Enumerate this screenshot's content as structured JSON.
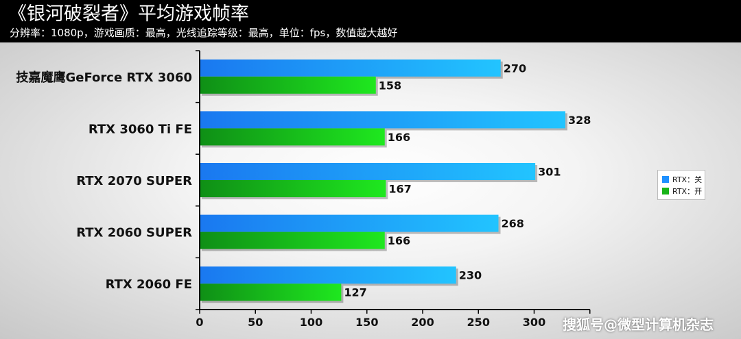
{
  "header": {
    "title": "《银河破裂者》平均游戏帧率",
    "subtitle": "分辨率：1080p，游戏画质：最高，光线追踪等级：最高，单位：fps，数值越大越好"
  },
  "chart_data": {
    "type": "bar",
    "orientation": "horizontal",
    "categories": [
      "技嘉魔鹰GeForce RTX 3060",
      "RTX 3060 Ti FE",
      "RTX 2070 SUPER",
      "RTX 2060 SUPER",
      "RTX 2060 FE"
    ],
    "series": [
      {
        "name": "RTX：关",
        "values": [
          270,
          328,
          301,
          268,
          230
        ],
        "color": "#1e90ff"
      },
      {
        "name": "RTX：开",
        "values": [
          158,
          166,
          167,
          166,
          127
        ],
        "color": "#18b418"
      }
    ],
    "x_ticks": [
      0,
      50,
      100,
      150,
      200,
      250,
      300
    ],
    "xlim": [
      0,
      350
    ],
    "legend_position": "right",
    "grid": false
  },
  "watermark": "搜狐号@微型计算机杂志"
}
